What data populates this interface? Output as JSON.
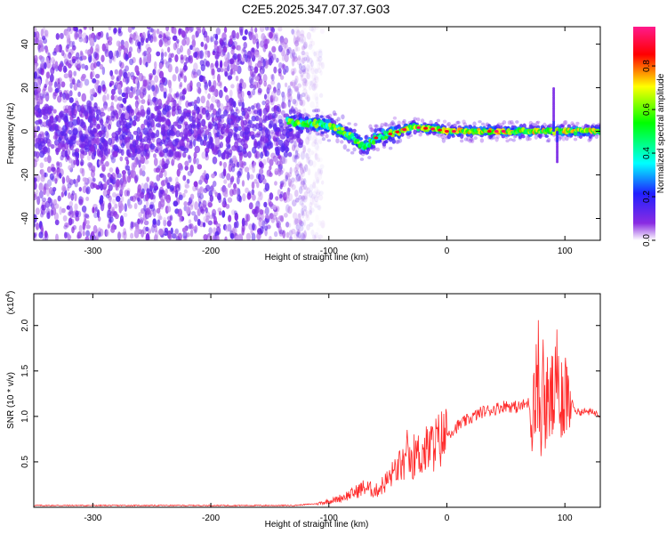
{
  "figure": {
    "title": "C2E5.2025.347.07.37.G03"
  },
  "chart_data": [
    {
      "type": "heatmap",
      "name": "spectrogram",
      "xlabel": "Height of straight line (km)",
      "ylabel": "Frequency (Hz)",
      "xlim": [
        -350,
        130
      ],
      "ylim": [
        -50,
        48
      ],
      "xticks": [
        -300,
        -200,
        -100,
        0,
        100
      ],
      "yticks": [
        -40,
        -20,
        0,
        20,
        40
      ],
      "regions": [
        {
          "label": "noise",
          "x": [
            -350,
            -120
          ],
          "y": [
            -50,
            48
          ],
          "amplitude": 0.1
        },
        {
          "label": "meteor-head-echo",
          "x": [
            -130,
            130
          ],
          "center_freq": [
            [
              -130,
              4
            ],
            [
              -100,
              3
            ],
            [
              -85,
              -1
            ],
            [
              -70,
              -7
            ],
            [
              -60,
              -3
            ],
            [
              -40,
              0
            ],
            [
              -30,
              2
            ],
            [
              -10,
              1
            ],
            [
              0,
              0
            ],
            [
              50,
              0
            ],
            [
              85,
              0
            ],
            [
              95,
              0
            ],
            [
              130,
              0
            ]
          ],
          "peak_amplitude": 1.0
        }
      ],
      "colorbar": {
        "label": "Normalized spectral amplitude",
        "range": [
          0.0,
          0.98
        ],
        "ticks": [
          "0.0",
          "0.2",
          "0.4",
          "0.6",
          "0.8"
        ],
        "tick_values": [
          0.0,
          0.2,
          0.4,
          0.6,
          0.8
        ]
      }
    },
    {
      "type": "line",
      "name": "snr",
      "xlabel": "Height of straight line (km)",
      "ylabel": "SNR (10 * v/v)",
      "y_scale_label": "(x10",
      "y_scale_exponent": "4",
      "xlim": [
        -350,
        130
      ],
      "ylim": [
        0.0,
        2.35
      ],
      "xticks": [
        -300,
        -200,
        -100,
        0,
        100
      ],
      "yticks": [
        "0.5",
        "1.0",
        "1.5",
        "2.0"
      ],
      "ytick_values": [
        0.5,
        1.0,
        1.5,
        2.0
      ],
      "color": "#ff2a2a",
      "series": [
        {
          "name": "SNR",
          "x": [
            -350,
            -300,
            -200,
            -130,
            -110,
            -95,
            -80,
            -70,
            -60,
            -50,
            -40,
            -30,
            -20,
            -10,
            0,
            10,
            20,
            30,
            40,
            50,
            60,
            70,
            80,
            90,
            100,
            110,
            120,
            130
          ],
          "y": [
            0.02,
            0.02,
            0.02,
            0.02,
            0.04,
            0.08,
            0.15,
            0.22,
            0.18,
            0.3,
            0.45,
            0.55,
            0.6,
            0.7,
            0.8,
            0.9,
            0.98,
            1.05,
            1.08,
            1.12,
            1.1,
            1.15,
            1.1,
            1.2,
            1.3,
            1.05,
            1.05,
            1.03
          ]
        }
      ]
    }
  ]
}
